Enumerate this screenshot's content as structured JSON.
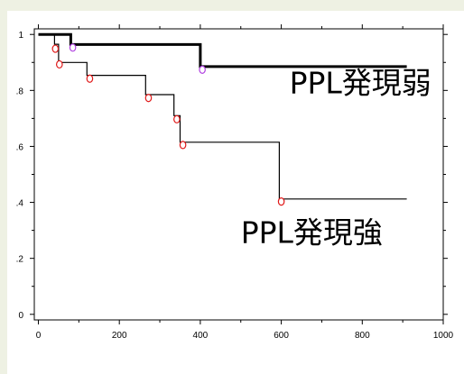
{
  "colors": {
    "background": "#eef1e3",
    "plot": "#ffffff",
    "weak_line": "#000000",
    "strong_line": "#000000",
    "censor_strong": "#e01818",
    "censor_weak": "#b040e0"
  },
  "chart_data": {
    "type": "line",
    "title": "",
    "xlabel": "",
    "ylabel": "",
    "xlim": [
      -10,
      1000
    ],
    "ylim": [
      -0.02,
      1.02
    ],
    "xticks": [
      0,
      200,
      400,
      600,
      800,
      1000
    ],
    "xtick_labels": [
      "0",
      "200",
      "400",
      "600",
      "800",
      "1000"
    ],
    "yticks": [
      0,
      0.2,
      0.4,
      0.6,
      0.8,
      1
    ],
    "ytick_labels": [
      "0",
      ".2",
      ".4",
      ".6",
      ".8",
      "1"
    ],
    "grid": false,
    "series": [
      {
        "name": "PPL発現弱",
        "step": true,
        "x": [
          0,
          80,
          80,
          400,
          400,
          910
        ],
        "y": [
          1.0,
          1.0,
          0.964,
          0.964,
          0.885,
          0.885
        ],
        "censored": [
          [
            85,
            0.953
          ],
          [
            405,
            0.874
          ]
        ]
      },
      {
        "name": "PPL発現強",
        "step": true,
        "x": [
          0,
          40,
          40,
          50,
          50,
          120,
          120,
          265,
          265,
          335,
          335,
          350,
          350,
          595,
          595,
          910
        ],
        "y": [
          1.0,
          1.0,
          0.965,
          0.965,
          0.9,
          0.9,
          0.854,
          0.854,
          0.785,
          0.785,
          0.71,
          0.71,
          0.615,
          0.615,
          0.412,
          0.412
        ],
        "censored": [
          [
            42,
            0.949
          ],
          [
            52,
            0.893
          ],
          [
            127,
            0.842
          ],
          [
            272,
            0.773
          ],
          [
            342,
            0.697
          ],
          [
            357,
            0.605
          ],
          [
            600,
            0.403
          ]
        ]
      }
    ],
    "annotations": [
      {
        "text": "PPL発現弱",
        "series": 0
      },
      {
        "text": "PPL発現強",
        "series": 1
      }
    ]
  }
}
